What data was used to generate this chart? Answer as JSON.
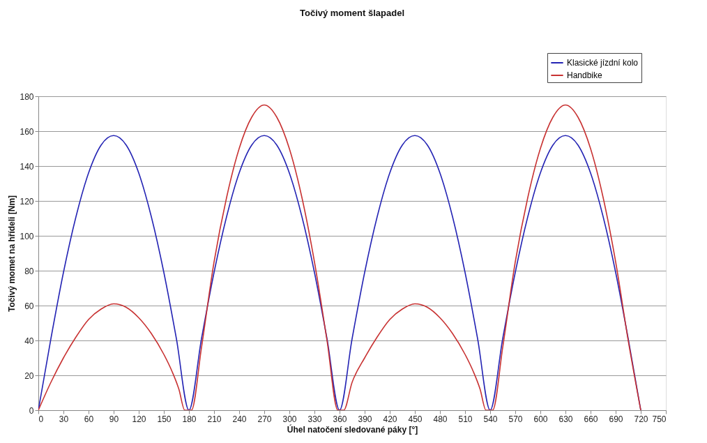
{
  "chart_data": {
    "type": "line",
    "title": "Točivý moment šlapadel",
    "xlabel": "Úhel natočení sledované páky [°]",
    "ylabel": "Točivý momet na hřídeli [Nm]",
    "xlim": [
      0,
      750
    ],
    "xticks": [
      0,
      30,
      60,
      90,
      120,
      150,
      180,
      210,
      240,
      270,
      300,
      330,
      360,
      390,
      420,
      450,
      480,
      510,
      540,
      570,
      600,
      630,
      660,
      690,
      720,
      750
    ],
    "ylim": [
      0,
      180
    ],
    "yticks": [
      0,
      20,
      40,
      60,
      80,
      100,
      120,
      140,
      160,
      180
    ],
    "grid": "y",
    "legend": "top right",
    "marker": "none",
    "line_style": "solid",
    "series": [
      {
        "name": "Klasické jízdní kolo",
        "color": "#2424b4",
        "x": [
          0,
          15,
          30,
          45,
          60,
          75,
          90,
          105,
          120,
          135,
          150,
          165,
          180,
          195,
          210,
          225,
          240,
          255,
          270,
          285,
          300,
          315,
          330,
          345,
          360,
          375,
          390,
          405,
          420,
          435,
          450,
          465,
          480,
          495,
          510,
          525,
          540,
          555,
          570,
          585,
          600,
          615,
          630,
          645,
          660,
          675,
          690,
          705,
          720
        ],
        "values": [
          0,
          41,
          79,
          111,
          136,
          152,
          157.5,
          152,
          136,
          111,
          79,
          41,
          0,
          41,
          79,
          111,
          136,
          152,
          157.5,
          152,
          136,
          111,
          79,
          41,
          0,
          41,
          79,
          111,
          136,
          152,
          157.5,
          152,
          136,
          111,
          79,
          41,
          0,
          41,
          79,
          111,
          136,
          152,
          157.5,
          152,
          136,
          111,
          79,
          41,
          0
        ]
      },
      {
        "name": "Handbike",
        "color": "#c83232",
        "x": [
          0,
          15,
          30,
          45,
          60,
          75,
          90,
          105,
          120,
          135,
          150,
          160,
          168,
          175,
          183,
          195,
          210,
          225,
          240,
          255,
          270,
          285,
          300,
          315,
          330,
          345,
          358,
          365,
          375,
          390,
          405,
          420,
          435,
          450,
          465,
          480,
          495,
          510,
          520,
          528,
          535,
          543,
          555,
          570,
          585,
          600,
          615,
          630,
          645,
          660,
          675,
          690,
          705,
          720
        ],
        "values": [
          0,
          16,
          30,
          42,
          52,
          58,
          61,
          59,
          53,
          44,
          32,
          22,
          12,
          0,
          0,
          36,
          85,
          122,
          150,
          168,
          175,
          168,
          150,
          122,
          85,
          40,
          0,
          0,
          16,
          30,
          42,
          52,
          58,
          61,
          59,
          53,
          44,
          32,
          22,
          12,
          0,
          0,
          36,
          85,
          122,
          150,
          168,
          175,
          168,
          150,
          122,
          85,
          40,
          0
        ]
      }
    ]
  }
}
